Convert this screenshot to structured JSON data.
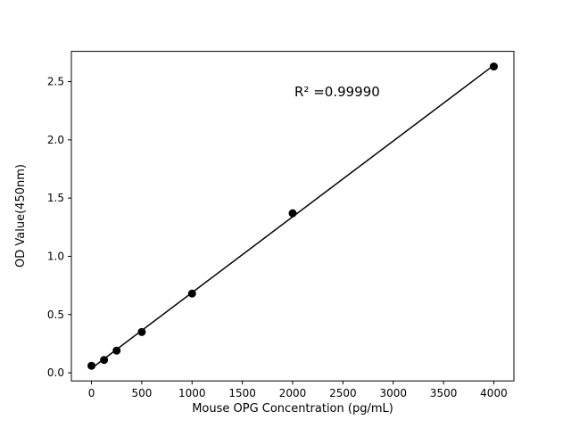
{
  "chart_data": {
    "type": "scatter",
    "title": "",
    "xlabel": "Mouse OPG Concentration (pg/mL)",
    "ylabel": "OD Value(450nm)",
    "annotation": "R² =0.99990",
    "x": [
      0,
      125,
      250,
      500,
      1000,
      2000,
      4000
    ],
    "y": [
      0.06,
      0.11,
      0.19,
      0.35,
      0.68,
      1.37,
      2.63
    ],
    "xlim": [
      -200,
      4200
    ],
    "ylim": [
      -0.07,
      2.76
    ],
    "xticks": [
      0,
      500,
      1000,
      1500,
      2000,
      2500,
      3000,
      3500,
      4000
    ],
    "yticks": [
      0.0,
      0.5,
      1.0,
      1.5,
      2.0,
      2.5
    ],
    "line": "linear-fit",
    "grid": false,
    "legend": "none",
    "marker_color": "#000000",
    "line_color": "#000000",
    "axis_color": "#000000",
    "background_color": "#ffffff"
  }
}
